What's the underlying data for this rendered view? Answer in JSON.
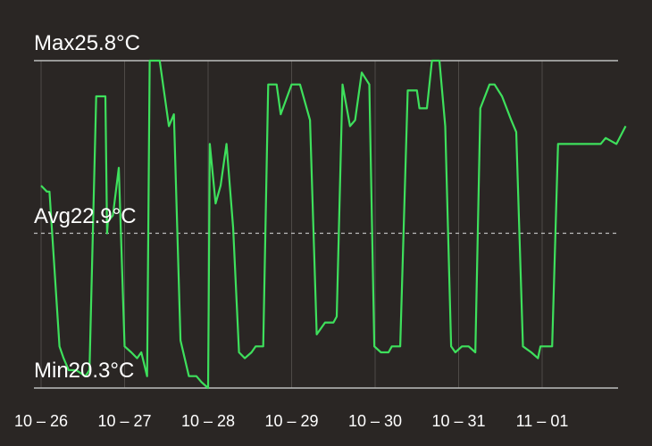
{
  "chart_data": {
    "type": "line",
    "title": "",
    "xlabel": "",
    "ylabel": "",
    "unit": "°C",
    "categories": [
      "10 – 26",
      "10 – 27",
      "10 – 28",
      "10 – 29",
      "10 – 30",
      "10 – 31",
      "11 – 01"
    ],
    "max_label": "Max25.8°C",
    "avg_label": "Avg22.9°C",
    "min_label": "Min20.3°C",
    "max": 25.8,
    "avg": 22.9,
    "min": 20.3,
    "line_color": "#3ee05c",
    "series": [
      {
        "name": "",
        "x": [
          0,
          0.07,
          0.1,
          0.22,
          0.27,
          0.33,
          0.42,
          0.53,
          0.58,
          0.66,
          0.77,
          0.79,
          0.8,
          0.86,
          0.93,
          1.0,
          1.08,
          1.15,
          1.2,
          1.27,
          1.3,
          1.39,
          1.42,
          1.53,
          1.59,
          1.67,
          1.77,
          1.86,
          1.92,
          2.0,
          2.02,
          2.09,
          2.15,
          2.22,
          2.3,
          2.37,
          2.44,
          2.52,
          2.57,
          2.66,
          2.72,
          2.82,
          2.87,
          3.0,
          3.1,
          3.22,
          3.3,
          3.4,
          3.5,
          3.54,
          3.61,
          3.7,
          3.76,
          3.84,
          3.93,
          3.99,
          4.07,
          4.16,
          4.2,
          4.3,
          4.39,
          4.5,
          4.53,
          4.62,
          4.68,
          4.77,
          4.84,
          4.91,
          4.96,
          5.04,
          5.12,
          5.2,
          5.26,
          5.37,
          5.43,
          5.52,
          5.63,
          5.69,
          5.77,
          5.87,
          5.95,
          5.98,
          6.04,
          6.12,
          6.19,
          6.26,
          6.31,
          6.38,
          6.46,
          6.53,
          6.61,
          6.7,
          6.76,
          6.89,
          7.0
        ],
        "values": [
          23.7,
          23.6,
          23.6,
          21.0,
          20.8,
          20.6,
          20.6,
          20.5,
          20.6,
          25.2,
          25.2,
          22.9,
          23.1,
          23.2,
          24.0,
          21.0,
          20.9,
          20.8,
          20.9,
          20.5,
          25.8,
          25.8,
          25.8,
          24.7,
          24.9,
          21.1,
          20.5,
          20.5,
          20.4,
          20.3,
          24.4,
          23.4,
          23.7,
          24.4,
          23.0,
          20.9,
          20.8,
          20.9,
          21.0,
          21.0,
          25.4,
          25.4,
          24.9,
          25.4,
          25.4,
          24.8,
          21.2,
          21.4,
          21.4,
          21.5,
          25.4,
          24.7,
          24.8,
          25.6,
          25.4,
          21.0,
          20.9,
          20.9,
          21.0,
          21.0,
          25.3,
          25.3,
          25.0,
          25.0,
          25.8,
          25.8,
          24.7,
          21.0,
          20.9,
          21.0,
          21.0,
          20.9,
          25.0,
          25.4,
          25.4,
          25.2,
          24.8,
          24.6,
          21.0,
          20.9,
          20.8,
          21.0,
          21.0,
          21.0,
          24.4,
          24.4,
          24.4,
          24.4,
          24.4,
          24.4,
          24.4,
          24.4,
          24.5,
          24.4,
          24.7
        ]
      }
    ]
  }
}
